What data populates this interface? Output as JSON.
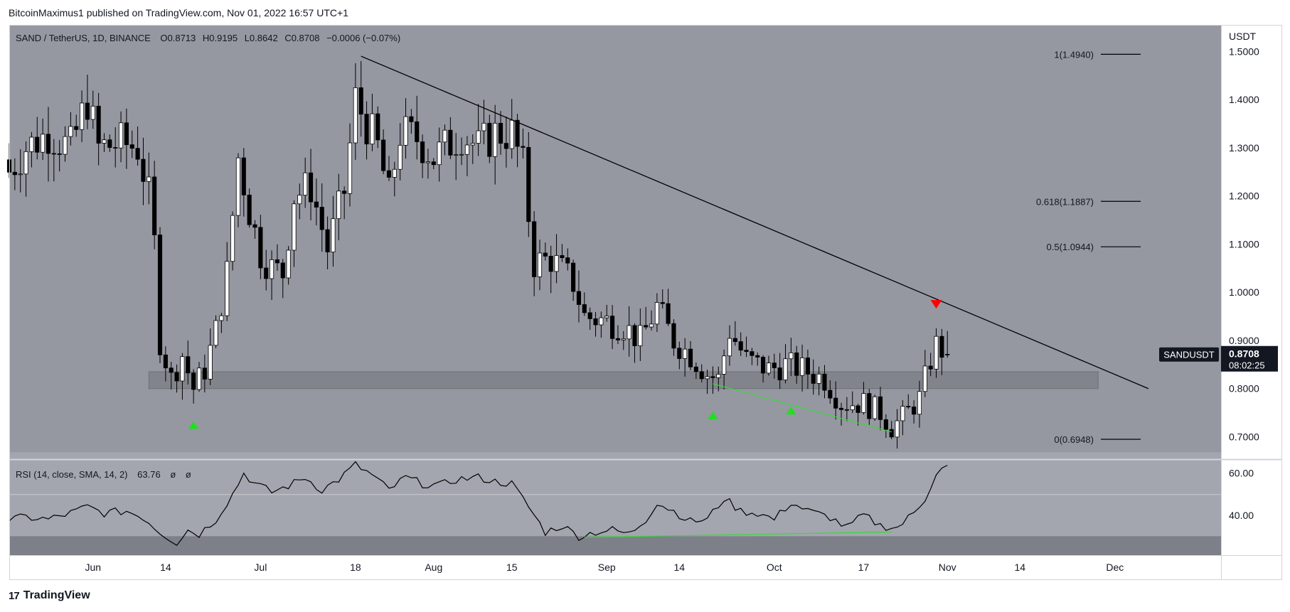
{
  "header": {
    "publisher_text": "BitcoinMaximus1 published on TradingView.com, Nov 01, 2022 16:57 UTC+1"
  },
  "footer": {
    "brand": "TradingView",
    "logo_text": "17"
  },
  "colors": {
    "panel_bg": "#9598a1",
    "rsi_band": "#a3a6ae",
    "rsi_oversold": "#7d8088",
    "candle_up": "#ffffff",
    "candle_down": "#000000",
    "support_zone": "#7e8087",
    "trendline": "#000000",
    "divergence": "#3bd63b",
    "arrow_up": "#22dd22",
    "arrow_down": "#ff0000",
    "price_label_bg": "#131722"
  },
  "chart_data": [
    {
      "type": "candlestick",
      "title": "SAND / TetherUS, 1D, BINANCE",
      "legend": {
        "o_label": "O",
        "o": "0.8713",
        "h_label": "H",
        "h": "0.9195",
        "l_label": "L",
        "l": "0.8642",
        "c_label": "C",
        "c": "0.8708",
        "change": "−0.0006 (−0.07%)"
      },
      "y_axis_label": "USDT",
      "ylim": [
        0.655,
        1.555
      ],
      "y_ticks": [
        {
          "value": 1.5,
          "label": "1.5000"
        },
        {
          "value": 1.4,
          "label": "1.4000"
        },
        {
          "value": 1.3,
          "label": "1.3000"
        },
        {
          "value": 1.2,
          "label": "1.2000"
        },
        {
          "value": 1.1,
          "label": "1.1000"
        },
        {
          "value": 1.0,
          "label": "1.0000"
        },
        {
          "value": 0.9,
          "label": "0.9000"
        },
        {
          "value": 0.8,
          "label": "0.8000"
        },
        {
          "value": 0.7,
          "label": "0.7000"
        }
      ],
      "x_ticks": [
        {
          "date": "2022-06-01",
          "label": "Jun"
        },
        {
          "date": "2022-06-14",
          "label": "14"
        },
        {
          "date": "2022-07-01",
          "label": "Jul"
        },
        {
          "date": "2022-07-18",
          "label": "18"
        },
        {
          "date": "2022-08-01",
          "label": "Aug"
        },
        {
          "date": "2022-08-15",
          "label": "15"
        },
        {
          "date": "2022-09-01",
          "label": "Sep"
        },
        {
          "date": "2022-09-14",
          "label": "14"
        },
        {
          "date": "2022-10-01",
          "label": "Oct"
        },
        {
          "date": "2022-10-17",
          "label": "17"
        },
        {
          "date": "2022-11-01",
          "label": "Nov"
        },
        {
          "date": "2022-11-14",
          "label": "14"
        },
        {
          "date": "2022-12-01",
          "label": "Dec"
        }
      ],
      "x_range": [
        "2022-05-17",
        "2022-12-20"
      ],
      "close_path": [
        [
          "2022-05-17",
          1.25
        ],
        [
          "2022-05-20",
          1.3
        ],
        [
          "2022-05-24",
          1.33
        ],
        [
          "2022-05-28",
          1.3
        ],
        [
          "2022-05-31",
          1.4
        ],
        [
          "2022-06-02",
          1.3
        ],
        [
          "2022-06-06",
          1.31
        ],
        [
          "2022-06-09",
          1.3
        ],
        [
          "2022-06-11",
          1.2
        ],
        [
          "2022-06-12",
          1.1
        ],
        [
          "2022-06-13",
          0.9
        ],
        [
          "2022-06-15",
          0.82
        ],
        [
          "2022-06-17",
          0.87
        ],
        [
          "2022-06-19",
          0.8
        ],
        [
          "2022-06-21",
          0.84
        ],
        [
          "2022-06-23",
          0.92
        ],
        [
          "2022-06-25",
          1.04
        ],
        [
          "2022-06-27",
          1.28
        ],
        [
          "2022-06-29",
          1.17
        ],
        [
          "2022-07-01",
          1.08
        ],
        [
          "2022-07-03",
          1.05
        ],
        [
          "2022-07-05",
          1.04
        ],
        [
          "2022-07-07",
          1.2
        ],
        [
          "2022-07-10",
          1.22
        ],
        [
          "2022-07-13",
          1.09
        ],
        [
          "2022-07-16",
          1.21
        ],
        [
          "2022-07-18",
          1.4
        ],
        [
          "2022-07-20",
          1.35
        ],
        [
          "2022-07-22",
          1.3
        ],
        [
          "2022-07-24",
          1.2
        ],
        [
          "2022-07-26",
          1.33
        ],
        [
          "2022-07-29",
          1.32
        ],
        [
          "2022-08-01",
          1.28
        ],
        [
          "2022-08-03",
          1.3
        ],
        [
          "2022-08-06",
          1.33
        ],
        [
          "2022-08-09",
          1.3
        ],
        [
          "2022-08-12",
          1.33
        ],
        [
          "2022-08-15",
          1.33
        ],
        [
          "2022-08-17",
          1.26
        ],
        [
          "2022-08-19",
          1.06
        ],
        [
          "2022-08-22",
          1.07
        ],
        [
          "2022-08-26",
          1.02
        ],
        [
          "2022-08-28",
          0.95
        ],
        [
          "2022-09-01",
          0.94
        ],
        [
          "2022-09-04",
          0.93
        ],
        [
          "2022-09-07",
          0.9
        ],
        [
          "2022-09-10",
          0.97
        ],
        [
          "2022-09-13",
          0.9
        ],
        [
          "2022-09-16",
          0.87
        ],
        [
          "2022-09-19",
          0.83
        ],
        [
          "2022-09-21",
          0.82
        ],
        [
          "2022-09-23",
          0.92
        ],
        [
          "2022-09-26",
          0.86
        ],
        [
          "2022-09-30",
          0.84
        ],
        [
          "2022-10-03",
          0.85
        ],
        [
          "2022-10-06",
          0.84
        ],
        [
          "2022-10-10",
          0.82
        ],
        [
          "2022-10-13",
          0.77
        ],
        [
          "2022-10-17",
          0.77
        ],
        [
          "2022-10-20",
          0.75
        ],
        [
          "2022-10-22",
          0.72
        ],
        [
          "2022-10-24",
          0.74
        ],
        [
          "2022-10-27",
          0.78
        ],
        [
          "2022-10-29",
          0.86
        ],
        [
          "2022-10-30",
          0.89
        ],
        [
          "2022-11-01",
          0.8708
        ]
      ],
      "support_zone": {
        "from": "2022-06-11",
        "to": "2022-11-28",
        "low": 0.8,
        "high": 0.835
      },
      "trendline": {
        "from": [
          "2022-07-19",
          1.49
        ],
        "to": [
          "2022-12-07",
          0.8
        ]
      },
      "divergence_line": {
        "from": [
          "2022-09-20",
          0.81
        ],
        "to": [
          "2022-10-22",
          0.71
        ]
      },
      "fib_levels": [
        {
          "value": 1.494,
          "label": "1(1.4940)"
        },
        {
          "value": 1.1887,
          "label": "0.618(1.1887)"
        },
        {
          "value": 1.0944,
          "label": "0.5(1.0944)"
        },
        {
          "value": 0.6948,
          "label": "0(0.6948)"
        }
      ],
      "arrows_up": [
        [
          "2022-06-19",
          0.725
        ],
        [
          "2022-09-20",
          0.745
        ],
        [
          "2022-10-04",
          0.755
        ]
      ],
      "arrows_down": [
        [
          "2022-10-30",
          0.975
        ]
      ],
      "price_label": {
        "symbol": "SANDUSDT",
        "price": "0.8708",
        "countdown": "08:02:25"
      }
    },
    {
      "type": "line",
      "title": "RSI (14, close, SMA, 14, 2)",
      "legend": {
        "value": "63.76",
        "extra1": "ø",
        "extra2": "ø"
      },
      "ylim": [
        21,
        66
      ],
      "y_ticks": [
        {
          "value": 60,
          "label": "60.00"
        },
        {
          "value": 40,
          "label": "40.00"
        }
      ],
      "band": [
        30,
        70
      ],
      "oversold": 30,
      "x_range": [
        "2022-05-17",
        "2022-12-20"
      ],
      "values": [
        [
          "2022-05-17",
          38
        ],
        [
          "2022-05-20",
          39
        ],
        [
          "2022-05-24",
          38
        ],
        [
          "2022-05-28",
          41
        ],
        [
          "2022-05-31",
          44
        ],
        [
          "2022-06-03",
          41
        ],
        [
          "2022-06-07",
          42
        ],
        [
          "2022-06-10",
          39
        ],
        [
          "2022-06-13",
          32
        ],
        [
          "2022-06-16",
          27
        ],
        [
          "2022-06-18",
          33
        ],
        [
          "2022-06-20",
          31
        ],
        [
          "2022-06-23",
          38
        ],
        [
          "2022-06-26",
          50
        ],
        [
          "2022-06-28",
          60
        ],
        [
          "2022-06-30",
          55
        ],
        [
          "2022-07-03",
          51
        ],
        [
          "2022-07-06",
          54
        ],
        [
          "2022-07-09",
          58
        ],
        [
          "2022-07-12",
          52
        ],
        [
          "2022-07-15",
          57
        ],
        [
          "2022-07-18",
          64
        ],
        [
          "2022-07-21",
          59
        ],
        [
          "2022-07-24",
          52
        ],
        [
          "2022-07-27",
          58
        ],
        [
          "2022-07-30",
          55
        ],
        [
          "2022-08-02",
          54
        ],
        [
          "2022-08-05",
          57
        ],
        [
          "2022-08-09",
          58
        ],
        [
          "2022-08-12",
          56
        ],
        [
          "2022-08-15",
          55
        ],
        [
          "2022-08-18",
          44
        ],
        [
          "2022-08-21",
          32
        ],
        [
          "2022-08-24",
          35
        ],
        [
          "2022-08-27",
          30
        ],
        [
          "2022-08-30",
          32
        ],
        [
          "2022-09-02",
          33
        ],
        [
          "2022-09-05",
          31
        ],
        [
          "2022-09-08",
          38
        ],
        [
          "2022-09-10",
          46
        ],
        [
          "2022-09-13",
          42
        ],
        [
          "2022-09-16",
          37
        ],
        [
          "2022-09-19",
          38
        ],
        [
          "2022-09-22",
          48
        ],
        [
          "2022-09-25",
          42
        ],
        [
          "2022-09-28",
          41
        ],
        [
          "2022-10-01",
          38
        ],
        [
          "2022-10-04",
          46
        ],
        [
          "2022-10-07",
          42
        ],
        [
          "2022-10-11",
          39
        ],
        [
          "2022-10-14",
          34
        ],
        [
          "2022-10-17",
          40
        ],
        [
          "2022-10-20",
          35
        ],
        [
          "2022-10-23",
          34
        ],
        [
          "2022-10-26",
          41
        ],
        [
          "2022-10-28",
          48
        ],
        [
          "2022-10-30",
          60
        ],
        [
          "2022-11-01",
          63.76
        ]
      ],
      "divergence_line": {
        "from": [
          "2022-08-28",
          29.5
        ],
        "to": [
          "2022-10-22",
          32
        ]
      }
    }
  ]
}
